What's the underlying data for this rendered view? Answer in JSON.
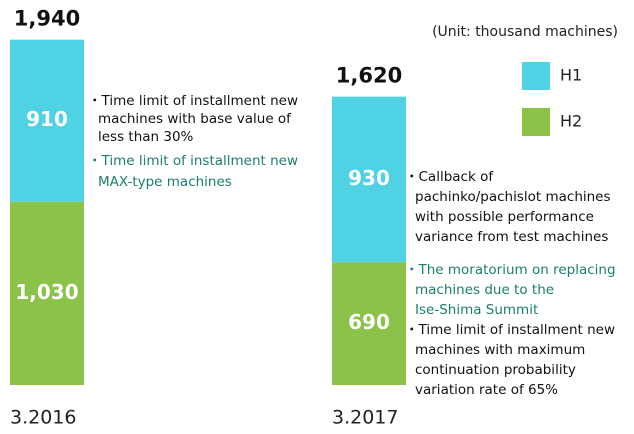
{
  "chart_data": {
    "type": "stacked_bar",
    "unit_label": "(Unit: thousand machines)",
    "categories": [
      "3.2016",
      "3.2017"
    ],
    "series": [
      {
        "name": "H2",
        "color": "#8bc34a",
        "values": [
          1030,
          690
        ],
        "value_labels": [
          "1,030",
          "690"
        ]
      },
      {
        "name": "H1",
        "color": "#4fd2e4",
        "values": [
          910,
          930
        ]
      }
    ],
    "total_labels": [
      "1,940",
      "1,620"
    ],
    "annotations": [
      {
        "color": "#111111",
        "lines": [
          "・Time limit of installment new",
          "machines with base value of",
          "less than 30%"
        ]
      },
      {
        "color": "#1b7f6e",
        "lines": [
          "・Time limit of installment new",
          "MAX-type machines"
        ]
      },
      {
        "color": "#111111",
        "lines": [
          "・Callback of",
          "pachinko/pachislot machines",
          "with possible performance",
          "variance from test machines"
        ]
      },
      {
        "color": "#1b7f6e",
        "lines": [
          "・The moratorium on replacing",
          "machines due to the",
          "Ise-Shima Summit"
        ]
      },
      {
        "color": "#111111",
        "lines": [
          "・Time limit of installment new",
          "machines with maximum",
          "continuation probability",
          "variation rate of 65%"
        ]
      }
    ]
  }
}
